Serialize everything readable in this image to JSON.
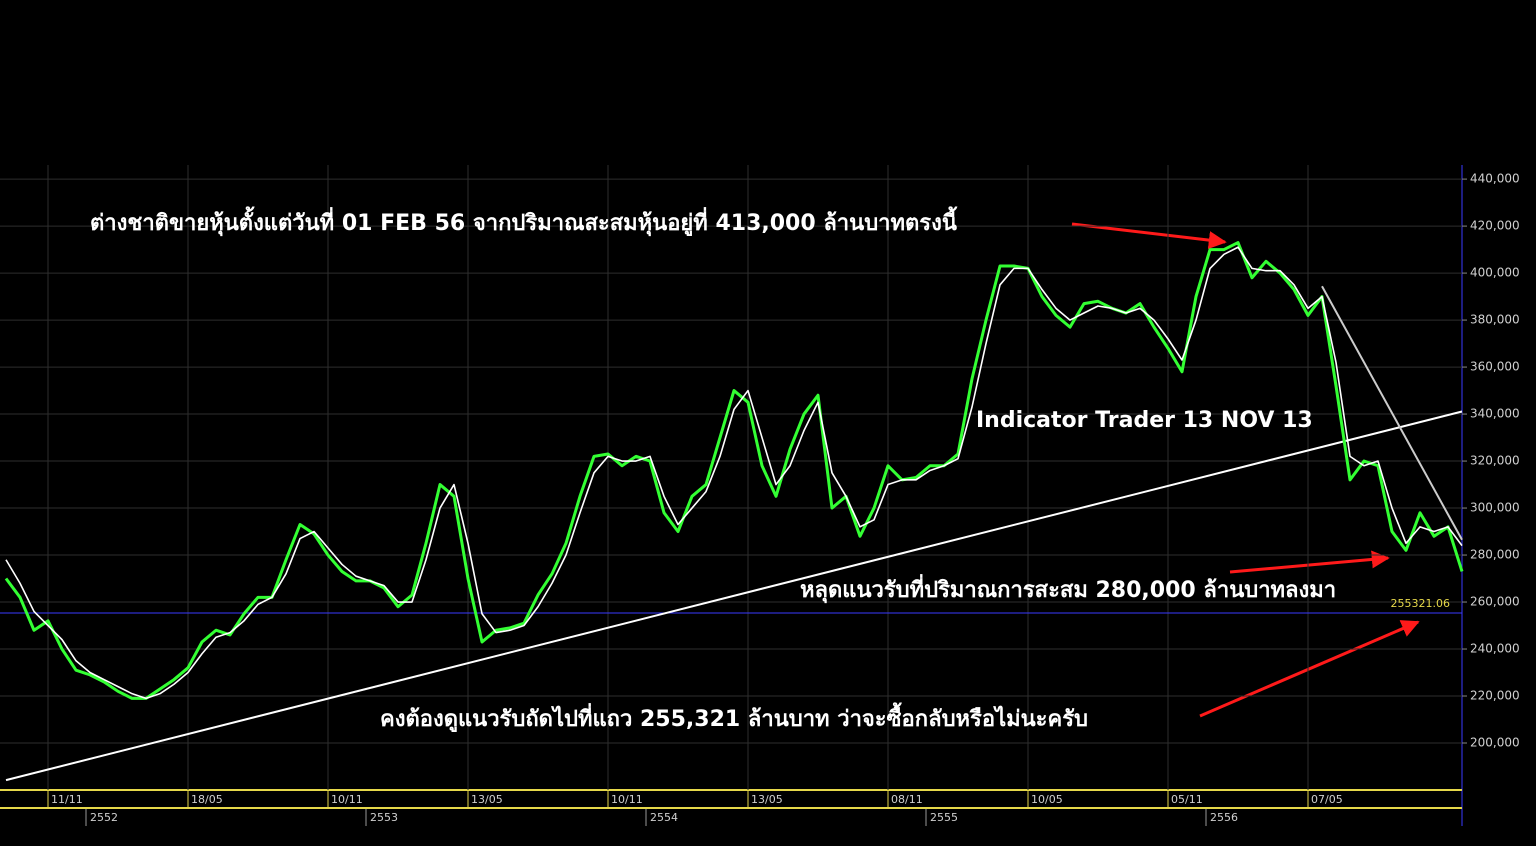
{
  "chart_data": {
    "type": "line",
    "categories": [
      null,
      null,
      null,
      "11/11",
      null,
      null,
      null,
      null,
      null,
      null,
      null,
      null,
      null,
      "18/05",
      null,
      null,
      null,
      null,
      null,
      null,
      null,
      null,
      null,
      "10/11",
      null,
      null,
      null,
      null,
      null,
      null,
      null,
      null,
      null,
      "13/05",
      null,
      null,
      null,
      null,
      null,
      null,
      null,
      null,
      null,
      "10/11",
      null,
      null,
      null,
      null,
      null,
      null,
      null,
      null,
      null,
      "13/05",
      null,
      null,
      null,
      null,
      null,
      null,
      null,
      null,
      null,
      "08/11",
      null,
      null,
      null,
      null,
      null,
      null,
      null,
      null,
      null,
      "10/05",
      null,
      null,
      null,
      null,
      null,
      null,
      null,
      null,
      null,
      "05/11",
      null,
      null,
      null,
      null,
      null,
      null,
      null,
      null,
      null,
      "07/05",
      null,
      null,
      null,
      null,
      null,
      null,
      null,
      null,
      null,
      null,
      null
    ],
    "year_labels": [
      null,
      null,
      null,
      null,
      null,
      null,
      "2552",
      null,
      null,
      null,
      null,
      null,
      null,
      null,
      null,
      null,
      null,
      null,
      null,
      null,
      null,
      null,
      null,
      null,
      null,
      null,
      "2553",
      null,
      null,
      null,
      null,
      null,
      null,
      null,
      null,
      null,
      null,
      null,
      null,
      null,
      null,
      null,
      null,
      null,
      null,
      null,
      "2554",
      null,
      null,
      null,
      null,
      null,
      null,
      null,
      null,
      null,
      null,
      null,
      null,
      null,
      null,
      null,
      null,
      null,
      null,
      null,
      "2555",
      null,
      null,
      null,
      null,
      null,
      null,
      null,
      null,
      null,
      null,
      null,
      null,
      null,
      null,
      null,
      null,
      null,
      null,
      null,
      "2556",
      null,
      null,
      null,
      null,
      null,
      null,
      null,
      null,
      null,
      null,
      null,
      null,
      null,
      null,
      null,
      null,
      null,
      null
    ],
    "series": [
      {
        "color": "#33ff33",
        "values": [
          270000,
          262000,
          248000,
          252000,
          240000,
          231000,
          229000,
          226000,
          222000,
          219000,
          219000,
          223000,
          227000,
          232000,
          243000,
          248000,
          246000,
          255000,
          262000,
          262000,
          278000,
          293000,
          289000,
          280000,
          273000,
          269000,
          269000,
          266000,
          258000,
          263000,
          285000,
          310000,
          305000,
          270000,
          243000,
          248000,
          249000,
          251000,
          263000,
          272000,
          285000,
          305000,
          322000,
          323000,
          318000,
          322000,
          320000,
          298000,
          290000,
          305000,
          310000,
          330000,
          350000,
          345000,
          318000,
          305000,
          325000,
          340000,
          348000,
          300000,
          305000,
          288000,
          300000,
          318000,
          312000,
          313000,
          318000,
          318000,
          323000,
          355000,
          380000,
          403000,
          403000,
          402000,
          390000,
          382000,
          377000,
          387000,
          388000,
          385000,
          383000,
          387000,
          377000,
          368000,
          358000,
          390000,
          410000,
          410000,
          413000,
          398000,
          405000,
          400000,
          393000,
          382000,
          390000,
          352000,
          312000,
          320000,
          318000,
          290000,
          282000,
          298000,
          288000,
          292000,
          273000
        ]
      },
      {
        "color": "#ffffff",
        "values": [
          278000,
          268000,
          256000,
          250000,
          244000,
          235000,
          230000,
          227000,
          224000,
          221000,
          219000,
          221000,
          225000,
          230000,
          238000,
          245000,
          247000,
          252000,
          259000,
          262000,
          272000,
          287000,
          290000,
          283000,
          276000,
          271000,
          269000,
          267000,
          260000,
          260000,
          278000,
          300000,
          310000,
          285000,
          255000,
          247000,
          248000,
          250000,
          258000,
          268000,
          280000,
          298000,
          315000,
          322000,
          320000,
          320000,
          322000,
          305000,
          293000,
          300000,
          307000,
          322000,
          342000,
          350000,
          330000,
          310000,
          318000,
          333000,
          345000,
          315000,
          305000,
          292000,
          295000,
          310000,
          312000,
          312000,
          316000,
          318000,
          321000,
          343000,
          370000,
          395000,
          402000,
          402000,
          393000,
          385000,
          380000,
          383000,
          386000,
          385000,
          383000,
          385000,
          380000,
          372000,
          363000,
          380000,
          402000,
          408000,
          411000,
          402000,
          401000,
          401000,
          395000,
          385000,
          390000,
          362000,
          322000,
          318000,
          320000,
          300000,
          285000,
          292000,
          290000,
          292000,
          284000
        ]
      }
    ],
    "trendlines": [
      {
        "color": "#ffffff",
        "points": [
          [
            0,
            184200
          ],
          [
            104,
            341100
          ]
        ]
      },
      {
        "color": "#cccccc",
        "points": [
          [
            94,
            394400
          ],
          [
            104,
            286500
          ]
        ]
      }
    ],
    "reference_line": {
      "value": 255321.06,
      "color": "#3a3aff",
      "label_color": "#e6d84a"
    },
    "ylim": [
      180000,
      446000
    ],
    "yticks": [
      {
        "value": 200000,
        "label": "200,000"
      },
      {
        "value": 220000,
        "label": "220,000"
      },
      {
        "value": 240000,
        "label": "240,000"
      },
      {
        "value": 260000,
        "label": "260,000"
      },
      {
        "value": 280000,
        "label": "280,000"
      },
      {
        "value": 300000,
        "label": "300,000"
      },
      {
        "value": 320000,
        "label": "320,000"
      },
      {
        "value": 340000,
        "label": "340,000"
      },
      {
        "value": 360000,
        "label": "360,000"
      },
      {
        "value": 380000,
        "label": "380,000"
      },
      {
        "value": 400000,
        "label": "400,000"
      },
      {
        "value": 420000,
        "label": "420,000"
      },
      {
        "value": 440000,
        "label": "440,000"
      }
    ],
    "grid": true,
    "annotations": [
      "ต่างชาติขายหุ้นตั้งแต่วันที่ 01 FEB 56 จากปริมาณสะสมหุ้นอยู่ที่ 413,000 ล้านบาทตรงนี้",
      "Indicator Trader 13 NOV 13",
      "หลุดแนวรับที่ปริมาณการสะสม 280,000 ล้านบาทลงมา",
      "คงต้องดูแนวรับถัดไปที่แถว 255,321 ล้านบาท ว่าจะซื้อกลับหรือไม่นะครับ"
    ]
  }
}
